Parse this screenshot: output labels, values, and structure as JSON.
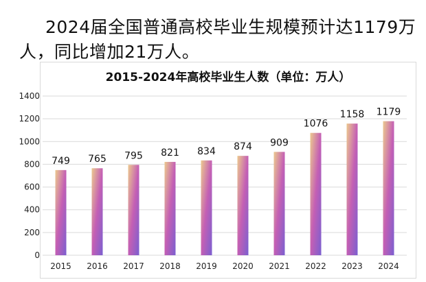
{
  "headline": "2024届全国普通高校毕业生规模预计达1179万人，同比增加21万人。",
  "chart_data": {
    "type": "bar",
    "title": "2015-2024年高校毕业生人数（单位：万人）",
    "categories": [
      "2015",
      "2016",
      "2017",
      "2018",
      "2019",
      "2020",
      "2021",
      "2022",
      "2023",
      "2024"
    ],
    "values": [
      749,
      765,
      795,
      821,
      834,
      874,
      909,
      1076,
      1158,
      1179
    ],
    "ylim": [
      0,
      1400
    ],
    "yticks": [
      0,
      200,
      400,
      600,
      800,
      1000,
      1200,
      1400
    ],
    "grid": true,
    "colors": {
      "bar_top": "#ecc98e",
      "bar_mid": "#c45fb4",
      "bar_bottom": "#7b5fd0",
      "grid": "#d9d9d9"
    }
  }
}
